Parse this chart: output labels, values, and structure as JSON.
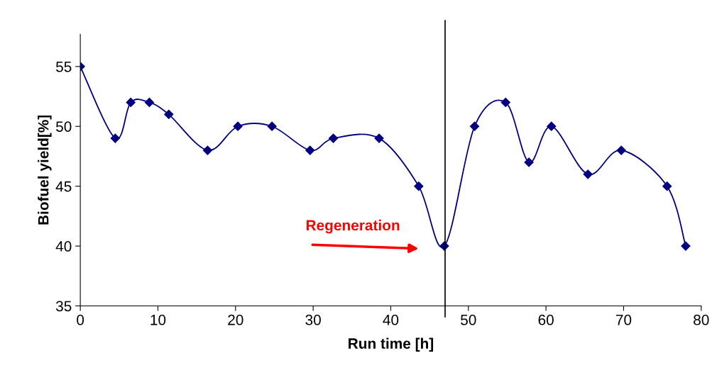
{
  "chart_data": {
    "type": "line",
    "xlabel": "Run time [h]",
    "ylabel": "Biofuel yield[%]",
    "series": [
      {
        "color": "#000080",
        "x": [
          0,
          4.5,
          6.5,
          8.9,
          11.4,
          16.4,
          20.3,
          24.7,
          29.6,
          32.6,
          38.5,
          43.6,
          46.9,
          50.8,
          54.8,
          57.8,
          60.7,
          65.4,
          69.7,
          75.6,
          78.0
        ],
        "values": [
          55,
          49,
          52,
          52,
          51,
          48,
          50,
          50,
          48,
          49,
          49,
          45,
          40,
          50,
          52,
          47,
          50,
          46,
          48,
          45,
          40
        ]
      }
    ],
    "marker": "diamond",
    "line_style": "solid",
    "grid": false,
    "legend": false,
    "xlim": [
      0,
      80
    ],
    "xticks": [
      0,
      10,
      20,
      30,
      40,
      50,
      60,
      70,
      80
    ],
    "ylim": [
      35,
      57.7
    ],
    "yticks": [
      35,
      40,
      45,
      50,
      55
    ],
    "ref_lines": [
      {
        "axis": "x",
        "value": 47,
        "color": "#000000"
      }
    ],
    "annotations": [
      "Regeneration"
    ]
  }
}
